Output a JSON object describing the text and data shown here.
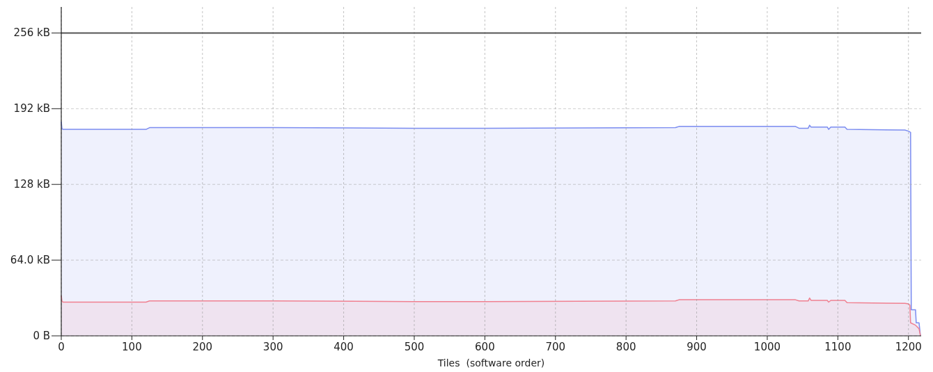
{
  "chart_data": {
    "type": "area",
    "xlabel": "Tiles  (software order)",
    "xlim": [
      0,
      1218
    ],
    "xticks": [
      0,
      100,
      200,
      300,
      400,
      500,
      600,
      700,
      800,
      900,
      1000,
      1100,
      1200
    ],
    "ylim": [
      0,
      278
    ],
    "yticks": [
      {
        "value": 0,
        "label": "0 B"
      },
      {
        "value": 64,
        "label": "64.0 kB"
      },
      {
        "value": 128,
        "label": "128 kB"
      },
      {
        "value": 192,
        "label": "192 kB"
      },
      {
        "value": 256,
        "label": "256 kB"
      }
    ],
    "grid": true,
    "line_style": "solid",
    "ref_lines": [
      {
        "axis": "y",
        "value": 256,
        "color": "#555555"
      }
    ],
    "series": [
      {
        "color": "#7b8cf0",
        "x": [
          0,
          1,
          3,
          120,
          125,
          300,
          500,
          600,
          870,
          875,
          1040,
          1045,
          1058,
          1060,
          1062,
          1085,
          1087,
          1090,
          1110,
          1113,
          1195,
          1200,
          1203,
          1204,
          1210,
          1211,
          1215,
          1217
        ],
        "values": [
          181,
          175,
          174.5,
          174.5,
          176,
          176,
          175.5,
          175.5,
          176,
          177,
          177,
          175.5,
          175.5,
          178,
          176.5,
          176.5,
          174.5,
          176.5,
          176.5,
          174.5,
          174,
          173,
          172,
          22,
          22,
          11,
          11,
          0
        ]
      },
      {
        "color": "#f08090",
        "x": [
          0,
          1,
          3,
          120,
          125,
          300,
          500,
          600,
          870,
          875,
          1040,
          1045,
          1058,
          1060,
          1062,
          1085,
          1087,
          1090,
          1110,
          1113,
          1195,
          1200,
          1202,
          1203,
          1210,
          1215,
          1217
        ],
        "values": [
          34,
          29,
          28.5,
          28.5,
          29.5,
          29.5,
          29,
          29,
          29.5,
          30.5,
          30.5,
          29.5,
          29.5,
          32,
          30,
          30,
          28.5,
          30,
          30,
          28,
          27.5,
          27,
          26,
          11,
          9,
          6,
          0
        ]
      }
    ]
  }
}
